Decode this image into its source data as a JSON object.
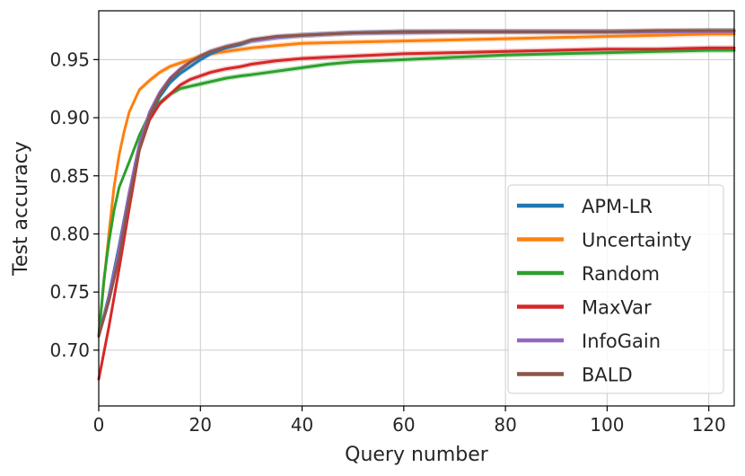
{
  "chart_data": {
    "type": "line",
    "xlabel": "Query number",
    "ylabel": "Test accuracy",
    "xlim": [
      0,
      125
    ],
    "ylim": [
      0.652,
      0.992
    ],
    "xticks": [
      0,
      20,
      40,
      60,
      80,
      100,
      120
    ],
    "yticks": [
      0.7,
      0.75,
      0.8,
      0.85,
      0.9,
      0.95
    ],
    "xtick_labels": [
      "0",
      "20",
      "40",
      "60",
      "80",
      "100",
      "120"
    ],
    "ytick_labels": [
      "0.70",
      "0.75",
      "0.80",
      "0.85",
      "0.90",
      "0.95"
    ],
    "grid": true,
    "legend_position": "bottom-right",
    "series": [
      {
        "name": "APM-LR",
        "color": "#1f77b4",
        "x": [
          0,
          2,
          4,
          6,
          8,
          10,
          12,
          14,
          16,
          18,
          20,
          22,
          25,
          28,
          30,
          35,
          40,
          45,
          50,
          60,
          70,
          80,
          90,
          100,
          110,
          120,
          125
        ],
        "y": [
          0.712,
          0.747,
          0.79,
          0.836,
          0.874,
          0.902,
          0.918,
          0.93,
          0.938,
          0.944,
          0.95,
          0.955,
          0.96,
          0.963,
          0.966,
          0.969,
          0.971,
          0.972,
          0.973,
          0.974,
          0.974,
          0.974,
          0.974,
          0.974,
          0.974,
          0.975,
          0.975
        ]
      },
      {
        "name": "Uncertainty",
        "color": "#ff7f0e",
        "x": [
          0,
          1,
          2,
          3,
          4,
          5,
          6,
          8,
          10,
          12,
          14,
          16,
          18,
          20,
          22,
          25,
          30,
          35,
          40,
          50,
          60,
          70,
          80,
          90,
          100,
          110,
          120,
          125
        ],
        "y": [
          0.712,
          0.758,
          0.8,
          0.84,
          0.868,
          0.888,
          0.905,
          0.924,
          0.932,
          0.939,
          0.944,
          0.947,
          0.95,
          0.953,
          0.955,
          0.957,
          0.96,
          0.962,
          0.964,
          0.965,
          0.966,
          0.967,
          0.968,
          0.969,
          0.97,
          0.971,
          0.972,
          0.972
        ]
      },
      {
        "name": "Random",
        "color": "#2ca02c",
        "x": [
          0,
          1,
          2,
          3,
          4,
          6,
          8,
          10,
          12,
          14,
          16,
          18,
          20,
          22,
          25,
          28,
          30,
          35,
          40,
          45,
          50,
          55,
          60,
          70,
          80,
          90,
          100,
          110,
          120,
          125
        ],
        "y": [
          0.712,
          0.76,
          0.793,
          0.82,
          0.84,
          0.862,
          0.885,
          0.903,
          0.913,
          0.92,
          0.925,
          0.927,
          0.929,
          0.931,
          0.934,
          0.936,
          0.937,
          0.94,
          0.943,
          0.946,
          0.948,
          0.949,
          0.95,
          0.952,
          0.954,
          0.955,
          0.956,
          0.957,
          0.958,
          0.958
        ]
      },
      {
        "name": "MaxVar",
        "color": "#d62728",
        "x": [
          0,
          2,
          4,
          6,
          8,
          10,
          12,
          14,
          16,
          18,
          20,
          22,
          25,
          28,
          30,
          35,
          40,
          45,
          50,
          60,
          70,
          80,
          90,
          100,
          110,
          120,
          125
        ],
        "y": [
          0.675,
          0.72,
          0.77,
          0.822,
          0.872,
          0.898,
          0.912,
          0.92,
          0.928,
          0.933,
          0.936,
          0.939,
          0.942,
          0.944,
          0.946,
          0.949,
          0.951,
          0.952,
          0.953,
          0.955,
          0.956,
          0.957,
          0.958,
          0.959,
          0.959,
          0.96,
          0.96
        ]
      },
      {
        "name": "InfoGain",
        "color": "#9467bd",
        "x": [
          0,
          2,
          4,
          6,
          8,
          10,
          12,
          14,
          16,
          18,
          20,
          22,
          25,
          28,
          30,
          35,
          40,
          45,
          50,
          60,
          70,
          80,
          90,
          100,
          110,
          120,
          125
        ],
        "y": [
          0.712,
          0.745,
          0.787,
          0.836,
          0.878,
          0.905,
          0.922,
          0.934,
          0.942,
          0.948,
          0.953,
          0.957,
          0.961,
          0.964,
          0.966,
          0.969,
          0.971,
          0.972,
          0.973,
          0.973,
          0.974,
          0.974,
          0.974,
          0.974,
          0.974,
          0.974,
          0.974
        ]
      },
      {
        "name": "BALD",
        "color": "#8c564b",
        "x": [
          0,
          2,
          4,
          6,
          8,
          10,
          12,
          14,
          16,
          18,
          20,
          22,
          25,
          28,
          30,
          35,
          40,
          45,
          50,
          60,
          70,
          80,
          90,
          100,
          110,
          120,
          125
        ],
        "y": [
          0.712,
          0.742,
          0.78,
          0.83,
          0.872,
          0.902,
          0.92,
          0.933,
          0.941,
          0.948,
          0.953,
          0.957,
          0.961,
          0.964,
          0.967,
          0.97,
          0.971,
          0.972,
          0.973,
          0.974,
          0.974,
          0.974,
          0.974,
          0.974,
          0.975,
          0.975,
          0.975
        ]
      }
    ]
  }
}
